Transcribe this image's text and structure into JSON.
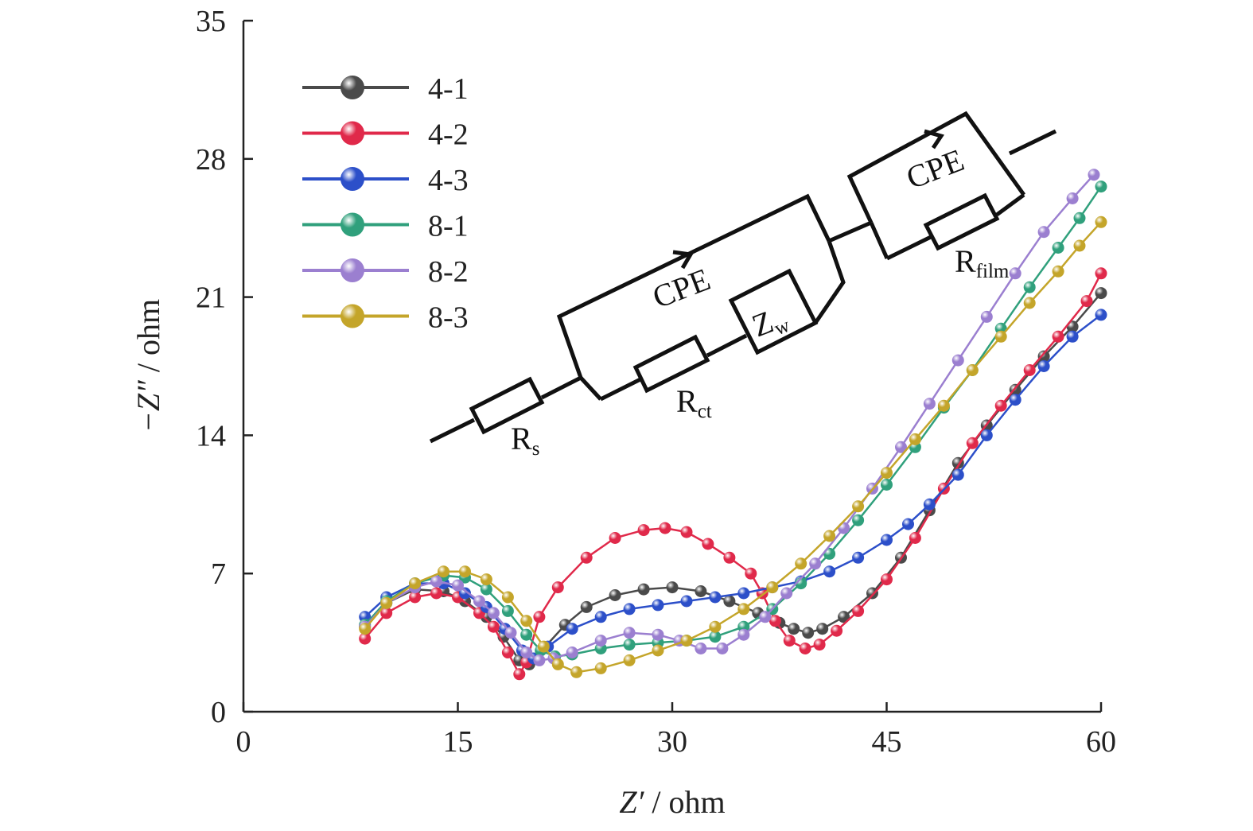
{
  "chart_data": {
    "type": "scatter",
    "xlabel": {
      "italic": "Z′",
      "rest": " / ohm"
    },
    "ylabel": {
      "italic": "−Z″",
      "rest": " / ohm"
    },
    "xlim": [
      0,
      60
    ],
    "ylim": [
      0,
      35
    ],
    "xticks": [
      "0",
      "15",
      "30",
      "45",
      "60"
    ],
    "yticks": [
      "0",
      "7",
      "14",
      "21",
      "28",
      "35"
    ],
    "legend_position": "top-left",
    "series": [
      {
        "name": "4-1",
        "color": "#4a4a4a",
        "points": [
          [
            8.5,
            4.3
          ],
          [
            10,
            5.5
          ],
          [
            12,
            6.2
          ],
          [
            14,
            6.1
          ],
          [
            15.5,
            5.6
          ],
          [
            17,
            4.8
          ],
          [
            18.2,
            3.8
          ],
          [
            19.3,
            2.6
          ],
          [
            20,
            2.4
          ],
          [
            21,
            3.2
          ],
          [
            22.5,
            4.4
          ],
          [
            24,
            5.3
          ],
          [
            26,
            5.9
          ],
          [
            28,
            6.2
          ],
          [
            30,
            6.3
          ],
          [
            32,
            6.1
          ],
          [
            34,
            5.6
          ],
          [
            36,
            5.0
          ],
          [
            37.5,
            4.5
          ],
          [
            38.5,
            4.2
          ],
          [
            39.5,
            4.0
          ],
          [
            40.5,
            4.2
          ],
          [
            42,
            4.8
          ],
          [
            44,
            6.0
          ],
          [
            46,
            7.8
          ],
          [
            48,
            10.2
          ],
          [
            50,
            12.6
          ],
          [
            52,
            14.5
          ],
          [
            54,
            16.3
          ],
          [
            56,
            18.0
          ],
          [
            58,
            19.5
          ],
          [
            60,
            21.2
          ]
        ]
      },
      {
        "name": "4-2",
        "color": "#e0294a",
        "points": [
          [
            8.5,
            3.7
          ],
          [
            10,
            5.0
          ],
          [
            12,
            5.8
          ],
          [
            13.5,
            6.0
          ],
          [
            15,
            5.8
          ],
          [
            16.5,
            5.0
          ],
          [
            17.5,
            4.3
          ],
          [
            18.5,
            3.0
          ],
          [
            19.3,
            1.9
          ],
          [
            19.8,
            2.5
          ],
          [
            20.7,
            4.8
          ],
          [
            22,
            6.3
          ],
          [
            24,
            7.8
          ],
          [
            26,
            8.8
          ],
          [
            28,
            9.2
          ],
          [
            29.5,
            9.3
          ],
          [
            31,
            9.1
          ],
          [
            32.5,
            8.5
          ],
          [
            34,
            7.8
          ],
          [
            35.5,
            7.0
          ],
          [
            36.3,
            6.0
          ],
          [
            37.2,
            4.6
          ],
          [
            38.2,
            3.6
          ],
          [
            39.3,
            3.2
          ],
          [
            40.3,
            3.4
          ],
          [
            41.5,
            4.1
          ],
          [
            43,
            5.1
          ],
          [
            45,
            6.7
          ],
          [
            47,
            8.8
          ],
          [
            49,
            11.3
          ],
          [
            51,
            13.6
          ],
          [
            53,
            15.5
          ],
          [
            55,
            17.3
          ],
          [
            57,
            19.0
          ],
          [
            59,
            20.8
          ],
          [
            60,
            22.2
          ]
        ]
      },
      {
        "name": "4-3",
        "color": "#2c4fc9",
        "points": [
          [
            8.5,
            4.8
          ],
          [
            10,
            5.8
          ],
          [
            12,
            6.5
          ],
          [
            14,
            6.5
          ],
          [
            15.5,
            6.0
          ],
          [
            17,
            5.3
          ],
          [
            18.3,
            4.2
          ],
          [
            19.5,
            3.1
          ],
          [
            20.3,
            2.7
          ],
          [
            21.3,
            3.3
          ],
          [
            23,
            4.2
          ],
          [
            25,
            4.8
          ],
          [
            27,
            5.2
          ],
          [
            29,
            5.4
          ],
          [
            31,
            5.6
          ],
          [
            33,
            5.8
          ],
          [
            35,
            6.0
          ],
          [
            37,
            6.3
          ],
          [
            39,
            6.6
          ],
          [
            41,
            7.1
          ],
          [
            43,
            7.8
          ],
          [
            45,
            8.7
          ],
          [
            46.5,
            9.5
          ],
          [
            48,
            10.5
          ],
          [
            50,
            12.0
          ],
          [
            52,
            14.0
          ],
          [
            54,
            15.8
          ],
          [
            56,
            17.5
          ],
          [
            58,
            19.0
          ],
          [
            60,
            20.1
          ]
        ]
      },
      {
        "name": "8-1",
        "color": "#30a07c",
        "points": [
          [
            8.5,
            4.4
          ],
          [
            10,
            5.6
          ],
          [
            12,
            6.5
          ],
          [
            14,
            6.9
          ],
          [
            15.5,
            6.8
          ],
          [
            17,
            6.2
          ],
          [
            18.5,
            5.1
          ],
          [
            19.8,
            3.9
          ],
          [
            20.8,
            3.1
          ],
          [
            21.8,
            2.8
          ],
          [
            23,
            2.9
          ],
          [
            25,
            3.2
          ],
          [
            27,
            3.4
          ],
          [
            29,
            3.5
          ],
          [
            31,
            3.6
          ],
          [
            33,
            3.8
          ],
          [
            35,
            4.3
          ],
          [
            37,
            5.2
          ],
          [
            39,
            6.5
          ],
          [
            41,
            8.0
          ],
          [
            43,
            9.7
          ],
          [
            45,
            11.5
          ],
          [
            47,
            13.4
          ],
          [
            49,
            15.4
          ],
          [
            51,
            17.3
          ],
          [
            53,
            19.4
          ],
          [
            55,
            21.5
          ],
          [
            57,
            23.5
          ],
          [
            58.5,
            25.0
          ],
          [
            60,
            26.6
          ]
        ]
      },
      {
        "name": "8-2",
        "color": "#9b7fd0",
        "points": [
          [
            8.5,
            4.3
          ],
          [
            10,
            5.5
          ],
          [
            12,
            6.3
          ],
          [
            13.5,
            6.6
          ],
          [
            15,
            6.4
          ],
          [
            16.5,
            5.6
          ],
          [
            17.5,
            5.0
          ],
          [
            18.7,
            4.0
          ],
          [
            19.8,
            3.0
          ],
          [
            20.7,
            2.6
          ],
          [
            21.7,
            2.7
          ],
          [
            23,
            3.0
          ],
          [
            25,
            3.6
          ],
          [
            27,
            4.0
          ],
          [
            29,
            3.9
          ],
          [
            30.5,
            3.6
          ],
          [
            32,
            3.2
          ],
          [
            33.5,
            3.2
          ],
          [
            35,
            3.9
          ],
          [
            36.5,
            4.8
          ],
          [
            38,
            6.0
          ],
          [
            40,
            7.5
          ],
          [
            42,
            9.3
          ],
          [
            44,
            11.3
          ],
          [
            46,
            13.4
          ],
          [
            48,
            15.6
          ],
          [
            50,
            17.8
          ],
          [
            52,
            20.0
          ],
          [
            54,
            22.2
          ],
          [
            56,
            24.3
          ],
          [
            58,
            26.0
          ],
          [
            59.5,
            27.2
          ]
        ]
      },
      {
        "name": "8-3",
        "color": "#c4a52a",
        "points": [
          [
            8.5,
            4.2
          ],
          [
            10,
            5.5
          ],
          [
            12,
            6.5
          ],
          [
            14,
            7.1
          ],
          [
            15.5,
            7.1
          ],
          [
            17,
            6.7
          ],
          [
            18.5,
            5.8
          ],
          [
            19.8,
            4.6
          ],
          [
            21,
            3.3
          ],
          [
            22,
            2.4
          ],
          [
            23.3,
            2.0
          ],
          [
            25,
            2.2
          ],
          [
            27,
            2.6
          ],
          [
            29,
            3.1
          ],
          [
            31,
            3.6
          ],
          [
            33,
            4.3
          ],
          [
            35,
            5.2
          ],
          [
            37,
            6.3
          ],
          [
            39,
            7.5
          ],
          [
            41,
            8.9
          ],
          [
            43,
            10.4
          ],
          [
            45,
            12.1
          ],
          [
            47,
            13.8
          ],
          [
            49,
            15.5
          ],
          [
            51,
            17.3
          ],
          [
            53,
            19.0
          ],
          [
            55,
            20.7
          ],
          [
            57,
            22.3
          ],
          [
            58.5,
            23.6
          ],
          [
            60,
            24.8
          ]
        ]
      }
    ]
  },
  "circuit": {
    "labels": {
      "rs": {
        "main": "R",
        "sub": "s"
      },
      "cpe1": {
        "main": "CPE"
      },
      "rct": {
        "main": "R",
        "sub": "ct"
      },
      "zw": {
        "main": "Z",
        "sub": "w"
      },
      "cpe2": {
        "main": "CPE"
      },
      "rfilm": {
        "main": "R",
        "sub": "film"
      }
    }
  }
}
